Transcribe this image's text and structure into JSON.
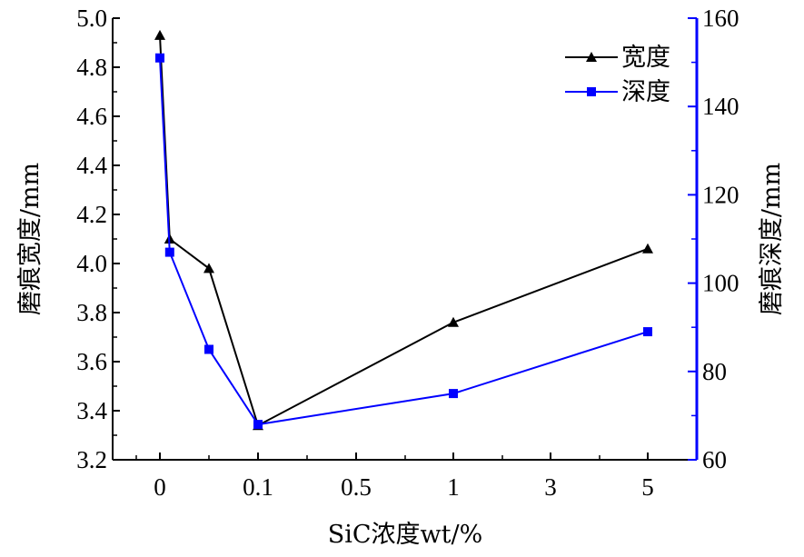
{
  "chart_data": {
    "type": "line",
    "categories": [
      "0",
      "",
      "",
      "0.1",
      "0.5",
      "1",
      "3",
      "5"
    ],
    "x_ticks": [
      "0",
      "0.1",
      "0.5",
      "1",
      "3",
      "5"
    ],
    "xlabel": "SiC浓度wt/%",
    "y_left": {
      "label": "磨痕宽度/mm",
      "ylim": [
        3.2,
        5.0
      ],
      "ticks": [
        "3.2",
        "3.4",
        "3.6",
        "3.8",
        "4.0",
        "4.2",
        "4.4",
        "4.6",
        "4.8",
        "5.0"
      ]
    },
    "y_right": {
      "label": "磨痕深度/mm",
      "ylim": [
        60,
        160
      ],
      "ticks": [
        "60",
        "80",
        "100",
        "120",
        "140",
        "160"
      ]
    },
    "series": [
      {
        "name": "宽度",
        "axis": "left",
        "color": "#000000",
        "marker": "triangle",
        "x": [
          0,
          0.01,
          0.05,
          0.1,
          1,
          5
        ],
        "values": [
          4.93,
          4.1,
          3.98,
          3.34,
          3.76,
          4.06
        ]
      },
      {
        "name": "深度",
        "axis": "right",
        "color": "#0000ff",
        "marker": "square",
        "x": [
          0,
          0.01,
          0.05,
          0.1,
          1,
          5
        ],
        "values": [
          151,
          107,
          85,
          68,
          75,
          89
        ]
      }
    ],
    "legend_position": "top-right",
    "grid": false
  }
}
